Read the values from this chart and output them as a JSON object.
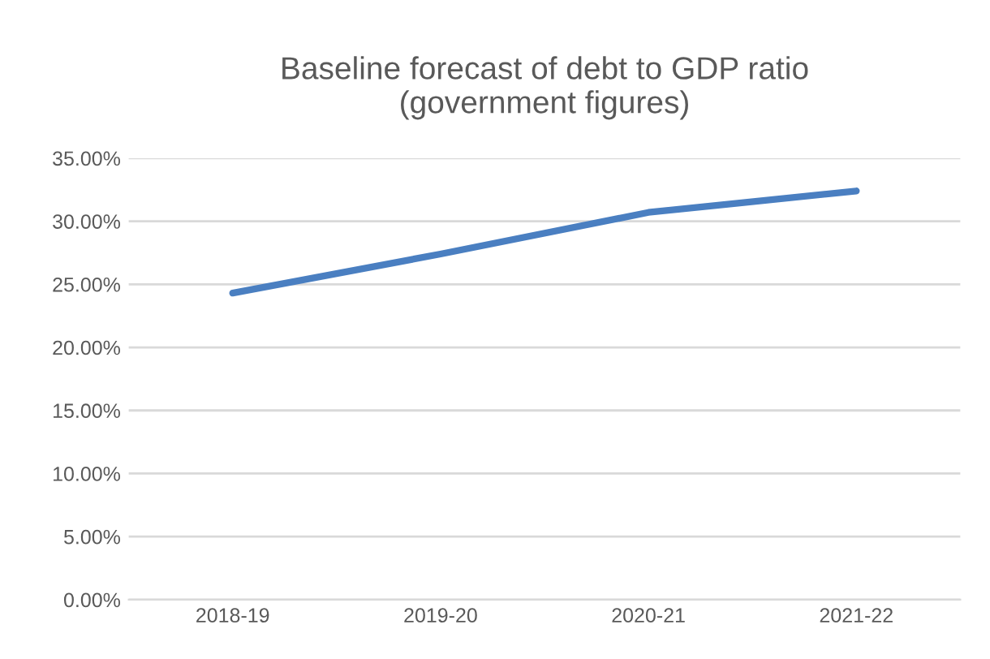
{
  "chart_data": {
    "type": "line",
    "title": "Baseline forecast of debt to GDP ratio\n(government figures)",
    "categories": [
      "2018-19",
      "2019-20",
      "2020-21",
      "2021-22"
    ],
    "series": [
      {
        "color": "#4a7fc1",
        "values": [
          24.3,
          27.4,
          30.7,
          32.4
        ]
      }
    ],
    "ylim": [
      0,
      35
    ],
    "yticks": [
      {
        "value": 0,
        "label": "0.00%"
      },
      {
        "value": 5,
        "label": "5.00%"
      },
      {
        "value": 10,
        "label": "10.00%"
      },
      {
        "value": 15,
        "label": "15.00%"
      },
      {
        "value": 20,
        "label": "20.00%"
      },
      {
        "value": 25,
        "label": "25.00%"
      },
      {
        "value": 30,
        "label": "30.00%"
      },
      {
        "value": 35,
        "label": "35.00%"
      }
    ],
    "grid": "y",
    "marker": "none",
    "line_style": "solid",
    "legend": false
  }
}
